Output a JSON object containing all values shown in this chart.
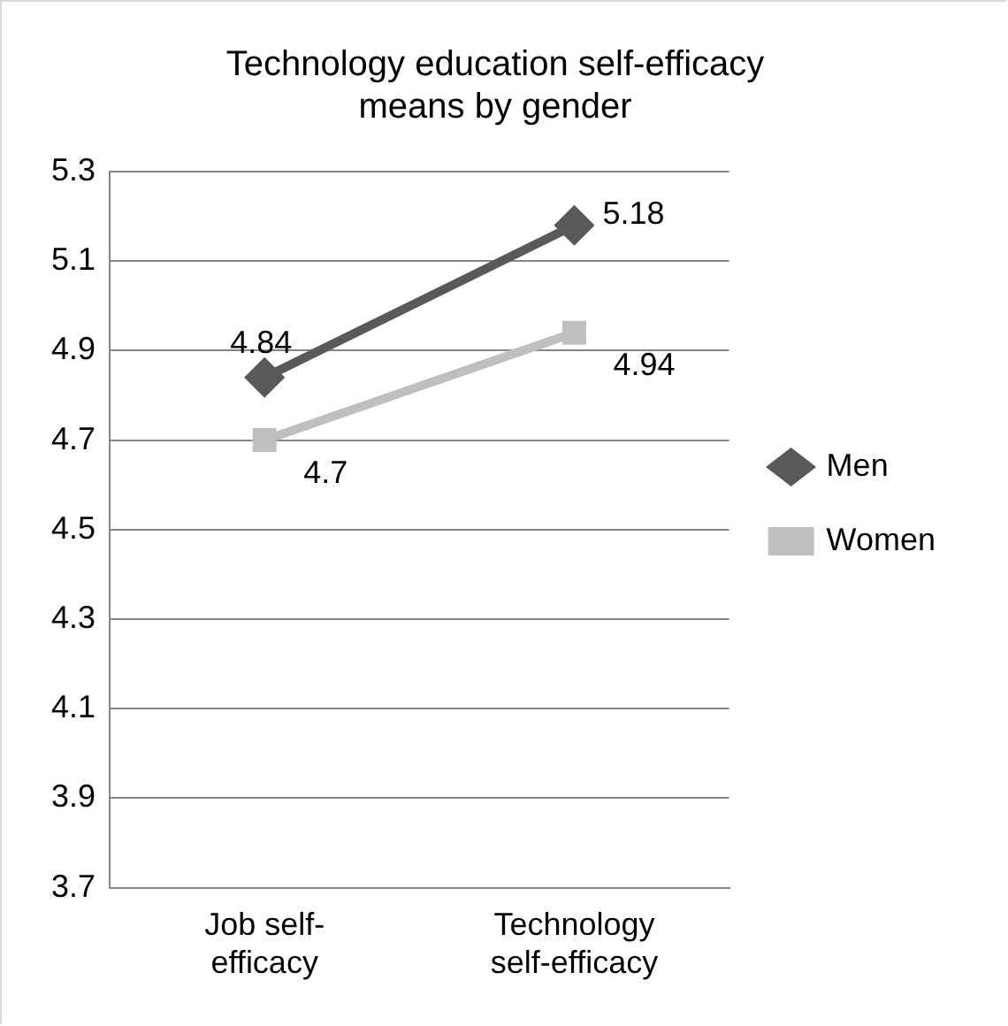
{
  "chart_data": {
    "type": "line",
    "title": "Technology education self-efficacy means by gender",
    "categories": [
      "Job self-efficacy",
      "Technology self-efficacy"
    ],
    "series": [
      {
        "name": "Men",
        "color": "#595959",
        "values": [
          4.84,
          5.18
        ],
        "marker": "diamond"
      },
      {
        "name": "Women",
        "color": "#bfbfbf",
        "values": [
          4.7,
          4.94
        ],
        "marker": "square"
      }
    ],
    "ylim": [
      3.7,
      5.3
    ],
    "yticks": [
      3.7,
      3.9,
      4.1,
      4.3,
      4.5,
      4.7,
      4.9,
      5.1,
      5.3
    ],
    "grid": "y",
    "legend": "right",
    "data_labels": true
  }
}
